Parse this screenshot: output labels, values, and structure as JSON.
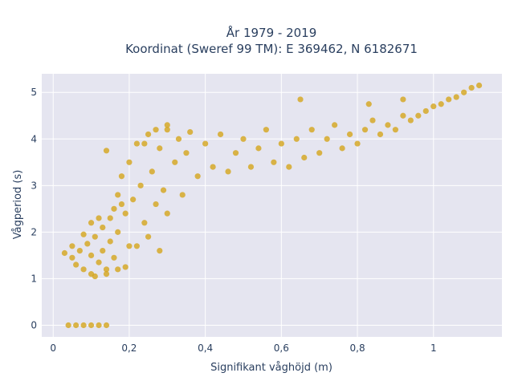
{
  "chart_data": {
    "type": "scatter",
    "title_line1": "År 1979 - 2019",
    "title_line2": "Koordinat (Sweref 99 TM): E 369462, N 6182671",
    "xlabel": "Signifikant våghöjd (m)",
    "ylabel": "Vågperiod (s)",
    "xlim": [
      -0.03,
      1.18
    ],
    "ylim": [
      -0.25,
      5.4
    ],
    "x_ticks": [
      0,
      0.2,
      0.4,
      0.6,
      0.8,
      1
    ],
    "x_tick_labels": [
      "0",
      "0,2",
      "0,4",
      "0,6",
      "0,8",
      "1"
    ],
    "y_ticks": [
      0,
      1,
      2,
      3,
      4,
      5
    ],
    "y_tick_labels": [
      "0",
      "1",
      "2",
      "3",
      "4",
      "5"
    ],
    "grid": true,
    "marker_color": "#d4a51c",
    "plot_bg": "#e5e5f0",
    "points": [
      [
        0.04,
        0
      ],
      [
        0.06,
        0
      ],
      [
        0.08,
        0
      ],
      [
        0.1,
        0
      ],
      [
        0.12,
        0
      ],
      [
        0.14,
        0
      ],
      [
        0.03,
        1.55
      ],
      [
        0.05,
        1.45
      ],
      [
        0.06,
        1.3
      ],
      [
        0.07,
        1.6
      ],
      [
        0.08,
        1.2
      ],
      [
        0.09,
        1.75
      ],
      [
        0.1,
        1.1
      ],
      [
        0.1,
        1.5
      ],
      [
        0.11,
        1.9
      ],
      [
        0.12,
        1.35
      ],
      [
        0.13,
        2.1
      ],
      [
        0.13,
        1.6
      ],
      [
        0.14,
        1.2
      ],
      [
        0.15,
        2.3
      ],
      [
        0.15,
        1.8
      ],
      [
        0.16,
        2.5
      ],
      [
        0.16,
        1.45
      ],
      [
        0.17,
        2.0
      ],
      [
        0.14,
        3.75
      ],
      [
        0.17,
        2.8
      ],
      [
        0.18,
        3.2
      ],
      [
        0.19,
        2.4
      ],
      [
        0.2,
        3.5
      ],
      [
        0.21,
        2.7
      ],
      [
        0.22,
        1.7
      ],
      [
        0.22,
        3.9
      ],
      [
        0.23,
        3.0
      ],
      [
        0.24,
        2.2
      ],
      [
        0.25,
        4.1
      ],
      [
        0.26,
        3.3
      ],
      [
        0.27,
        2.6
      ],
      [
        0.28,
        3.8
      ],
      [
        0.29,
        2.9
      ],
      [
        0.3,
        4.2
      ],
      [
        0.3,
        2.4
      ],
      [
        0.32,
        3.5
      ],
      [
        0.33,
        4.0
      ],
      [
        0.34,
        2.8
      ],
      [
        0.35,
        3.7
      ],
      [
        0.36,
        4.15
      ],
      [
        0.38,
        3.2
      ],
      [
        0.4,
        3.9
      ],
      [
        0.42,
        3.4
      ],
      [
        0.44,
        4.1
      ],
      [
        0.46,
        3.3
      ],
      [
        0.48,
        3.7
      ],
      [
        0.5,
        4.0
      ],
      [
        0.52,
        3.4
      ],
      [
        0.54,
        3.8
      ],
      [
        0.56,
        4.2
      ],
      [
        0.58,
        3.5
      ],
      [
        0.6,
        3.9
      ],
      [
        0.62,
        3.4
      ],
      [
        0.64,
        4.0
      ],
      [
        0.66,
        3.6
      ],
      [
        0.68,
        4.2
      ],
      [
        0.7,
        3.7
      ],
      [
        0.72,
        4.0
      ],
      [
        0.74,
        4.3
      ],
      [
        0.76,
        3.8
      ],
      [
        0.78,
        4.1
      ],
      [
        0.8,
        3.9
      ],
      [
        0.82,
        4.2
      ],
      [
        0.84,
        4.4
      ],
      [
        0.86,
        4.1
      ],
      [
        0.88,
        4.3
      ],
      [
        0.9,
        4.2
      ],
      [
        0.92,
        4.5
      ],
      [
        0.94,
        4.4
      ],
      [
        0.96,
        4.5
      ],
      [
        0.98,
        4.6
      ],
      [
        1.0,
        4.7
      ],
      [
        1.02,
        4.75
      ],
      [
        1.04,
        4.85
      ],
      [
        1.06,
        4.9
      ],
      [
        1.08,
        5.0
      ],
      [
        1.1,
        5.1
      ],
      [
        1.12,
        5.15
      ],
      [
        0.65,
        4.85
      ],
      [
        0.83,
        4.75
      ],
      [
        0.92,
        4.85
      ],
      [
        0.27,
        4.2
      ],
      [
        0.3,
        4.3
      ],
      [
        0.24,
        3.9
      ],
      [
        0.12,
        2.3
      ],
      [
        0.18,
        2.6
      ],
      [
        0.2,
        1.7
      ],
      [
        0.25,
        1.9
      ],
      [
        0.28,
        1.6
      ],
      [
        0.19,
        1.25
      ],
      [
        0.17,
        1.2
      ],
      [
        0.11,
        1.05
      ],
      [
        0.14,
        1.1
      ],
      [
        0.08,
        1.95
      ],
      [
        0.05,
        1.7
      ],
      [
        0.1,
        2.2
      ]
    ]
  }
}
